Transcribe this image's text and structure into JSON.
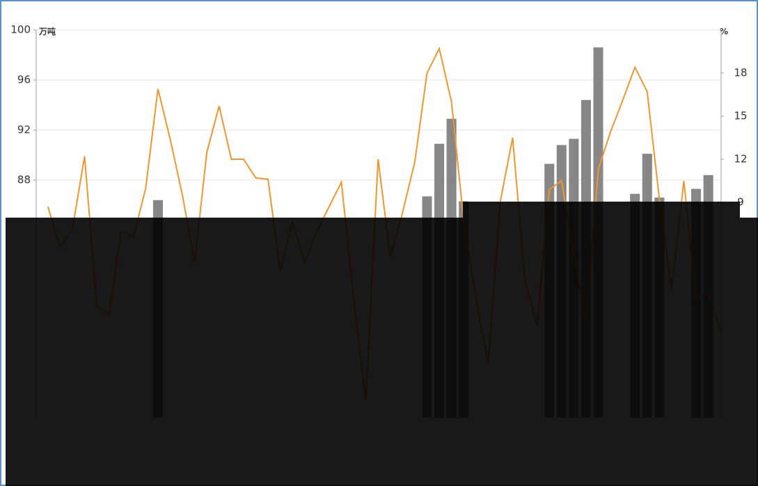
{
  "chart_data": {
    "type": "bar_line",
    "y_unit": "万吨",
    "y2_unit": "%",
    "ylim": [
      69,
      100
    ],
    "yticks": [
      88,
      92,
      96,
      100
    ],
    "y2lim": [
      -6,
      21
    ],
    "y2ticks": [
      9,
      12,
      15,
      18
    ],
    "grid": true,
    "series": [
      {
        "type": "bar",
        "color": "#878787",
        "values": [
          null,
          null,
          null,
          null,
          null,
          null,
          null,
          null,
          null,
          86.4,
          null,
          null,
          null,
          null,
          null,
          null,
          null,
          null,
          null,
          null,
          null,
          null,
          null,
          null,
          null,
          null,
          null,
          null,
          null,
          null,
          null,
          86.7,
          90.9,
          92.9,
          86.3,
          null,
          null,
          null,
          null,
          null,
          null,
          89.3,
          90.8,
          91.3,
          94.4,
          98.6,
          null,
          null,
          86.9,
          90.1,
          86.6,
          null,
          null,
          87.3,
          88.4,
          null
        ]
      },
      {
        "type": "line",
        "axis": "y2",
        "color": "#f0962a",
        "values": [
          8.7,
          5.9,
          7.1,
          12.2,
          1.8,
          1.2,
          7.0,
          6.6,
          10.0,
          16.9,
          13.4,
          9.5,
          4.8,
          12.5,
          15.7,
          12.0,
          12.0,
          10.7,
          10.6,
          4.2,
          7.7,
          4.8,
          7.0,
          8.7,
          10.4,
          2.3,
          -4.8,
          12.0,
          5.2,
          8.3,
          11.8,
          18.0,
          19.7,
          16.0,
          7.7,
          2.3,
          -2.2,
          9.1,
          13.5,
          3.6,
          0.4,
          9.9,
          10.5,
          5.3,
          0.7,
          11.3,
          13.9,
          16.1,
          18.4,
          16.7,
          9.2,
          2.9,
          10.5,
          2.2,
          2.7,
          0.0
        ]
      }
    ]
  }
}
